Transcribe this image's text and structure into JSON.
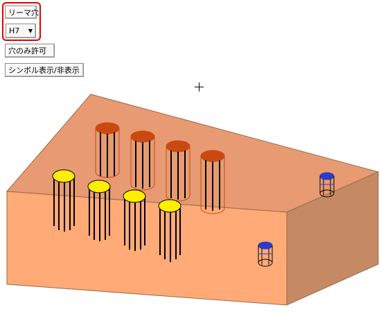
{
  "toolbar": {
    "reamer_hole_label": "リーマ穴",
    "tolerance_value": "H7",
    "hole_only_label": "穴のみ許可",
    "symbol_toggle_label": "シンボル表示/非表示"
  },
  "colors": {
    "highlight": "#e00000",
    "block_top": "#e89a72",
    "block_front": "#ffaa77",
    "block_side": "#c58a63",
    "hole_orange": "#c84a10",
    "hole_yellow": "#ffee00",
    "hole_blue": "#2a3cc8"
  }
}
